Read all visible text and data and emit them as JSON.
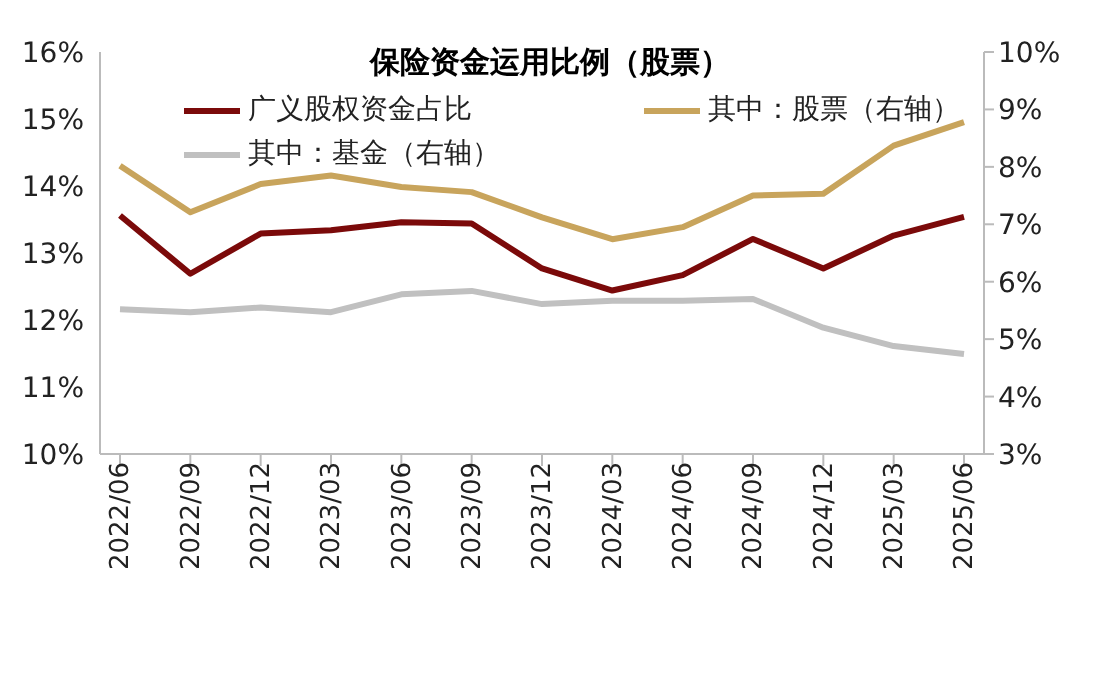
{
  "chart_data": {
    "type": "line",
    "title": "保险资金运用比例（股票）",
    "categories": [
      "2022/06",
      "2022/09",
      "2022/12",
      "2023/03",
      "2023/06",
      "2023/09",
      "2023/12",
      "2024/03",
      "2024/06",
      "2024/09",
      "2024/12",
      "2025/03",
      "2025/06"
    ],
    "series": [
      {
        "name": "广义股权资金占比",
        "color": "#7b0a0a",
        "values": [
          13.56,
          12.69,
          13.29,
          13.34,
          13.46,
          13.44,
          12.77,
          12.44,
          12.67,
          13.21,
          12.77,
          13.26,
          13.54
        ]
      },
      {
        "name": "其中：股票（右轴）",
        "color": "#c8a45c",
        "axis": "y2",
        "values": [
          8.02,
          7.21,
          7.7,
          7.85,
          7.65,
          7.56,
          7.12,
          6.74,
          6.95,
          7.5,
          7.53,
          8.37,
          8.78
        ]
      },
      {
        "name": "其中：基金（右轴）",
        "color": "#c0c0c0",
        "axis": "y2",
        "values": [
          5.52,
          5.47,
          5.55,
          5.47,
          5.78,
          5.84,
          5.61,
          5.67,
          5.67,
          5.7,
          5.2,
          4.88,
          4.74
        ]
      }
    ],
    "ylim": [
      10,
      16
    ],
    "yticks": [
      {
        "value": 10,
        "label": "10%"
      },
      {
        "value": 11,
        "label": "11%"
      },
      {
        "value": 12,
        "label": "12%"
      },
      {
        "value": 13,
        "label": "13%"
      },
      {
        "value": 14,
        "label": "14%"
      },
      {
        "value": 15,
        "label": "15%"
      },
      {
        "value": 16,
        "label": "16%"
      }
    ],
    "y2lim": [
      3,
      10
    ],
    "y2ticks": [
      {
        "value": 3,
        "label": "3%"
      },
      {
        "value": 4,
        "label": "4%"
      },
      {
        "value": 5,
        "label": "5%"
      },
      {
        "value": 6,
        "label": "6%"
      },
      {
        "value": 7,
        "label": "7%"
      },
      {
        "value": 8,
        "label": "8%"
      },
      {
        "value": 9,
        "label": "9%"
      },
      {
        "value": 10,
        "label": "10%"
      }
    ],
    "grid": false,
    "legend": "top",
    "marker": "none",
    "line_style": "solid"
  }
}
